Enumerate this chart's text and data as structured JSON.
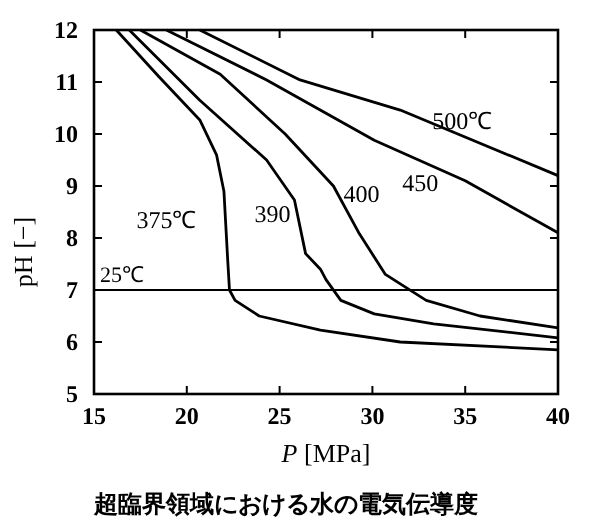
{
  "chart_data": {
    "type": "line",
    "title": "超臨界領域における水の電気伝導度",
    "xlabel": "*P* [MPa]",
    "ylabel": "pH [−]",
    "xlim": [
      15,
      40
    ],
    "ylim": [
      5,
      12
    ],
    "xticks": [
      15,
      20,
      25,
      30,
      35,
      40
    ],
    "yticks": [
      5,
      6,
      7,
      8,
      9,
      10,
      11,
      12
    ],
    "grid": false,
    "marker": "none",
    "line_style": "solid",
    "series": [
      {
        "name": "375℃",
        "color": "#000000",
        "x": [
          16.2,
          18.5,
          20.7,
          21.6,
          22.0,
          22.2,
          22.3,
          22.6,
          23.9,
          27.2,
          31.5,
          40
        ],
        "values": [
          12,
          11.1,
          10.27,
          9.6,
          8.9,
          7.6,
          7.0,
          6.8,
          6.5,
          6.23,
          6.0,
          5.85
        ]
      },
      {
        "name": "390",
        "color": "#000000",
        "x": [
          16.9,
          20.7,
          24.3,
          25.8,
          26.4,
          27.2,
          27.5,
          28.3,
          30.1,
          33.3,
          40
        ],
        "values": [
          12,
          10.65,
          9.5,
          8.73,
          7.7,
          7.4,
          7.2,
          6.8,
          6.54,
          6.35,
          6.08
        ]
      },
      {
        "name": "400",
        "color": "#000000",
        "x": [
          17.5,
          21.8,
          25.3,
          27.9,
          29.3,
          30.7,
          32.9,
          35.8,
          40
        ],
        "values": [
          12,
          11.15,
          10.0,
          9.0,
          8.08,
          7.3,
          6.8,
          6.5,
          6.27
        ]
      },
      {
        "name": "450",
        "color": "#000000",
        "x": [
          18.9,
          24.3,
          30.1,
          35.0,
          40
        ],
        "values": [
          12,
          11.04,
          9.88,
          9.1,
          8.1
        ]
      },
      {
        "name": "500℃",
        "color": "#000000",
        "x": [
          20.7,
          26.1,
          31.5,
          40
        ],
        "values": [
          12,
          11.04,
          10.46,
          9.2
        ]
      }
    ],
    "ref_lines": [
      {
        "axis": "y",
        "value": 7,
        "label": "25℃",
        "color": "#000000"
      }
    ]
  }
}
